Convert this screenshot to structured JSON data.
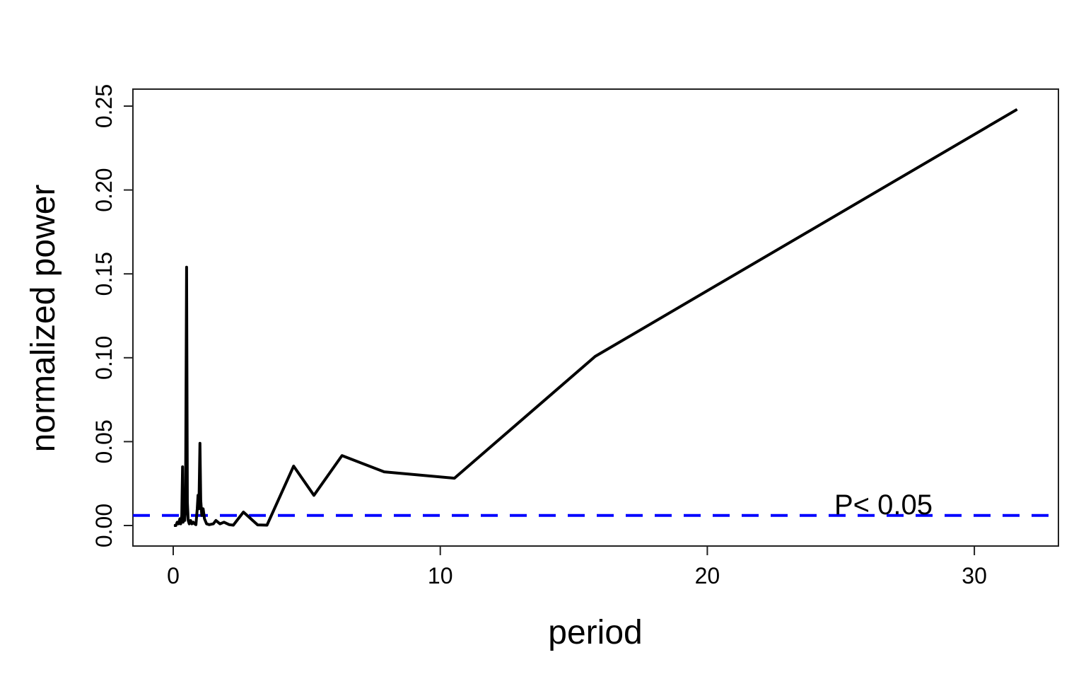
{
  "chart_data": {
    "type": "line",
    "title": "",
    "xlabel": "period",
    "ylabel": "normalized power",
    "xlim": [
      -1.5,
      33
    ],
    "ylim": [
      -0.012,
      0.26
    ],
    "x_ticks": [
      0,
      10,
      20,
      30
    ],
    "x_tick_labels": [
      "0",
      "10",
      "20",
      "30"
    ],
    "y_ticks": [
      0,
      0.05,
      0.1,
      0.15,
      0.2,
      0.25
    ],
    "y_tick_labels": [
      "0.00",
      "0.05",
      "0.10",
      "0.15",
      "0.20",
      "0.25"
    ],
    "grid": false,
    "series": [
      {
        "color": "#000000",
        "x": [
          0.03,
          0.1,
          0.15,
          0.2,
          0.25,
          0.28,
          0.32,
          0.35,
          0.37,
          0.4,
          0.43,
          0.46,
          0.5,
          0.53,
          0.56,
          0.6,
          0.65,
          0.7,
          0.75,
          0.8,
          0.85,
          0.9,
          0.93,
          0.96,
          1.0,
          1.03,
          1.07,
          1.12,
          1.17,
          1.25,
          1.35,
          1.5,
          1.6,
          1.75,
          1.9,
          2.1,
          2.25,
          2.63,
          3.16,
          3.51,
          4.51,
          5.27,
          6.32,
          7.9,
          10.53,
          15.8,
          31.6
        ],
        "y": [
          0,
          0,
          0.002,
          0.001,
          0.004,
          0.001,
          0.006,
          0.035,
          0.002,
          0.012,
          0.003,
          0.01,
          0.154,
          0.014,
          0.003,
          0.001,
          0.003,
          0.001,
          0.002,
          0.001,
          0.0005,
          0.01,
          0.018,
          0.01,
          0.049,
          0.015,
          0.006,
          0.01,
          0.004,
          0.001,
          0.0005,
          0.001,
          0.003,
          0.001,
          0.002,
          0.0005,
          0.0002,
          0.008,
          0.0004,
          0.0002,
          0.0354,
          0.018,
          0.0417,
          0.032,
          0.0282,
          0.1008,
          0.248
        ]
      }
    ],
    "threshold": {
      "value": 0.006,
      "color": "#0000ff",
      "style": "dashed",
      "label": "P< 0.05"
    }
  }
}
